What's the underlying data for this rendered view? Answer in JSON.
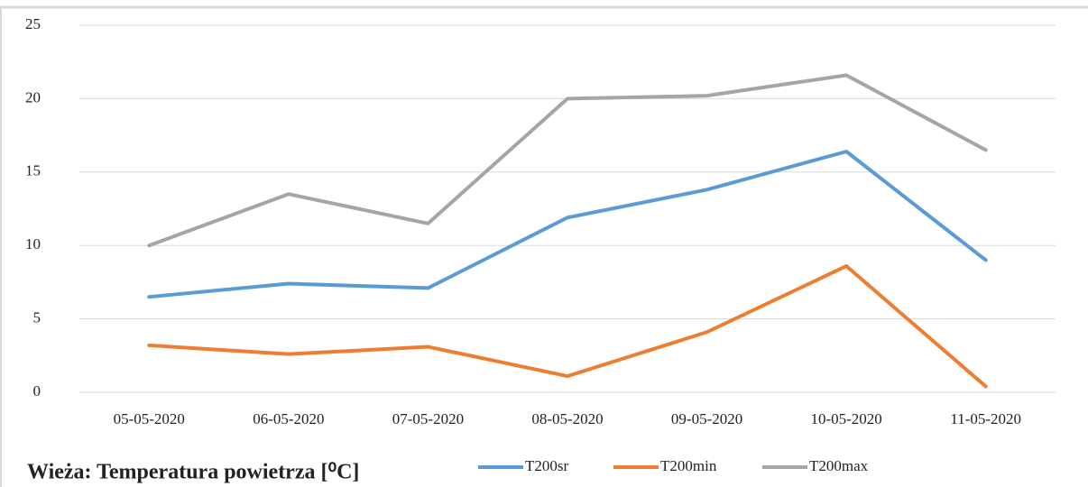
{
  "chart_data": {
    "type": "line",
    "title": "Wieża: Temperatura powietrza [⁰C]",
    "categories": [
      "05-05-2020",
      "06-05-2020",
      "07-05-2020",
      "08-05-2020",
      "09-05-2020",
      "10-05-2020",
      "11-05-2020"
    ],
    "series": [
      {
        "name": "T200sr",
        "color": "#5b9bd5",
        "values": [
          6.5,
          7.4,
          7.1,
          11.9,
          13.8,
          16.4,
          9.0
        ]
      },
      {
        "name": "T200min",
        "color": "#ed7d31",
        "values": [
          3.2,
          2.6,
          3.1,
          1.1,
          4.1,
          8.6,
          0.4
        ]
      },
      {
        "name": "T200max",
        "color": "#a5a5a5",
        "values": [
          10.0,
          13.5,
          11.5,
          20.0,
          20.2,
          21.6,
          16.5
        ]
      }
    ],
    "ylim": [
      0,
      25
    ],
    "yticks": [
      0,
      5,
      10,
      15,
      20,
      25
    ],
    "grid": true,
    "legend": "bottom"
  }
}
